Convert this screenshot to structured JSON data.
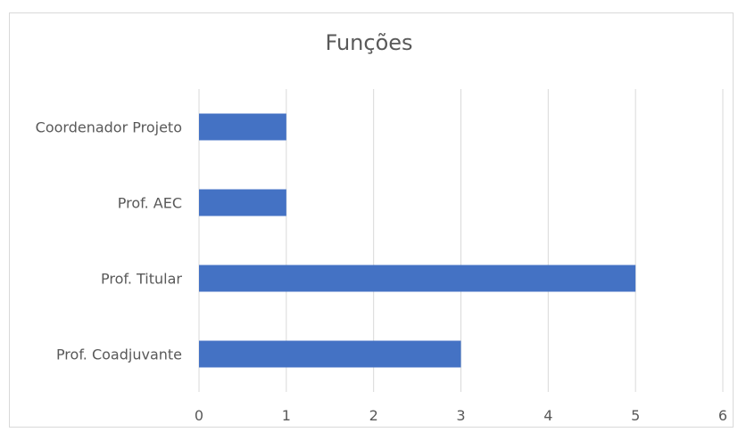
{
  "chart_data": {
    "type": "bar",
    "orientation": "horizontal",
    "title": "Funções",
    "categories": [
      "Coordenador Projeto",
      "Prof. AEC",
      "Prof. Titular",
      "Prof. Coadjuvante"
    ],
    "values": [
      1,
      1,
      5,
      3
    ],
    "xlim": [
      0,
      6
    ],
    "xticks": [
      0,
      1,
      2,
      3,
      4,
      5,
      6
    ],
    "xlabel": "",
    "ylabel": "",
    "grid": true,
    "legend": "none",
    "bar_color": "#4472c4",
    "grid_color": "#d9d9d9",
    "text_color": "#595959"
  }
}
